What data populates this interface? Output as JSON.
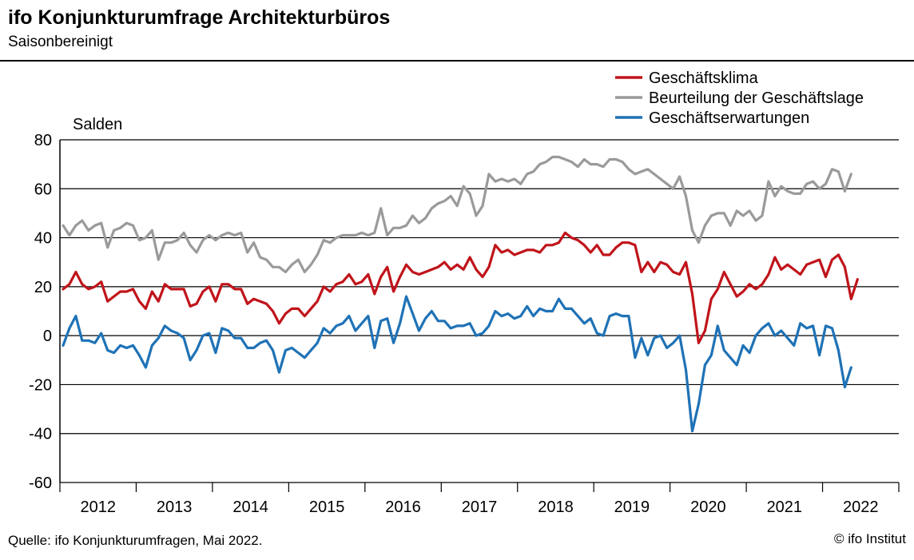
{
  "header": {
    "title": "ifo Konjunkturumfrage Architekturbüros",
    "subtitle": "Saisonbereinigt"
  },
  "footer": {
    "source": "Quelle: ifo Konjunkturumfragen, Mai 2022.",
    "copyright": "© ifo Institut"
  },
  "chart_data": {
    "type": "line",
    "ylabel": "Salden",
    "ylim": [
      -60,
      80
    ],
    "yticks": [
      -60,
      -40,
      -20,
      0,
      20,
      40,
      60,
      80
    ],
    "grid": true,
    "legend_position": "top-right",
    "x_start": "2012-01",
    "x_frequency": "monthly",
    "year_labels": [
      "2012",
      "2013",
      "2014",
      "2015",
      "2016",
      "2017",
      "2018",
      "2019",
      "2020",
      "2021",
      "2022"
    ],
    "series": [
      {
        "name": "Geschäftsklima",
        "color": "#c0141a",
        "values": [
          19,
          21,
          26,
          21,
          19,
          20,
          22,
          14,
          16,
          18,
          18,
          19,
          14,
          11,
          18,
          14,
          21,
          19,
          19,
          19,
          12,
          13,
          18,
          20,
          14,
          21,
          21,
          19,
          19,
          13,
          15,
          14,
          13,
          10,
          5,
          9,
          11,
          11,
          8,
          11,
          14,
          20,
          18,
          21,
          22,
          25,
          21,
          22,
          25,
          17,
          24,
          28,
          18,
          24,
          29,
          26,
          25,
          26,
          27,
          28,
          30,
          27,
          29,
          27,
          32,
          27,
          24,
          28,
          37,
          34,
          35,
          33,
          34,
          35,
          35,
          34,
          37,
          37,
          38,
          42,
          40,
          39,
          37,
          34,
          37,
          33,
          33,
          36,
          38,
          38,
          37,
          26,
          30,
          26,
          30,
          29,
          26,
          25,
          30,
          17,
          -3,
          2,
          15,
          19,
          26,
          21,
          16,
          18,
          21,
          19,
          21,
          25,
          32,
          27,
          29,
          27,
          25,
          29,
          30,
          31,
          24,
          31,
          33,
          28,
          15,
          23
        ]
      },
      {
        "name": "Beurteilung der Geschäftslage",
        "color": "#9a9a9a",
        "values": [
          45,
          41,
          45,
          47,
          43,
          45,
          46,
          36,
          43,
          44,
          46,
          45,
          39,
          40,
          43,
          31,
          38,
          38,
          39,
          42,
          37,
          34,
          39,
          41,
          39,
          41,
          42,
          41,
          42,
          34,
          38,
          32,
          31,
          28,
          28,
          26,
          29,
          31,
          26,
          29,
          33,
          39,
          38,
          40,
          41,
          41,
          41,
          42,
          41,
          42,
          52,
          41,
          44,
          44,
          45,
          49,
          46,
          48,
          52,
          54,
          55,
          57,
          53,
          61,
          58,
          49,
          53,
          66,
          63,
          64,
          63,
          64,
          62,
          66,
          67,
          70,
          71,
          73,
          73,
          72,
          71,
          69,
          72,
          70,
          70,
          69,
          72,
          72,
          71,
          68,
          66,
          67,
          68,
          66,
          64,
          62,
          60,
          65,
          57,
          43,
          38,
          45,
          49,
          50,
          50,
          45,
          51,
          49,
          51,
          47,
          49,
          63,
          57,
          61,
          59,
          58,
          58,
          62,
          63,
          60,
          62,
          68,
          67,
          59,
          66
        ]
      },
      {
        "name": "Geschäftserwartungen",
        "color": "#1f72b6",
        "values": [
          -4,
          3,
          8,
          -2,
          -2,
          -3,
          1,
          -6,
          -7,
          -4,
          -5,
          -4,
          -8,
          -13,
          -4,
          -1,
          4,
          2,
          1,
          -1,
          -10,
          -6,
          0,
          1,
          -7,
          3,
          2,
          -1,
          -1,
          -5,
          -5,
          -3,
          -2,
          -6,
          -15,
          -6,
          -5,
          -7,
          -9,
          -6,
          -3,
          3,
          1,
          4,
          5,
          8,
          2,
          5,
          8,
          -5,
          6,
          7,
          -3,
          5,
          16,
          9,
          2,
          7,
          10,
          6,
          6,
          3,
          4,
          4,
          5,
          0,
          1,
          4,
          10,
          8,
          9,
          7,
          8,
          12,
          8,
          11,
          10,
          10,
          15,
          11,
          11,
          8,
          5,
          7,
          1,
          0,
          8,
          9,
          8,
          8,
          -9,
          -1,
          -8,
          -1,
          0,
          -5,
          -3,
          0,
          -14,
          -39,
          -28,
          -12,
          -8,
          4,
          -6,
          -9,
          -12,
          -4,
          -7,
          0,
          3,
          5,
          0,
          2,
          -1,
          -4,
          5,
          3,
          4,
          -8,
          4,
          3,
          -6,
          -21,
          -13
        ]
      }
    ]
  }
}
